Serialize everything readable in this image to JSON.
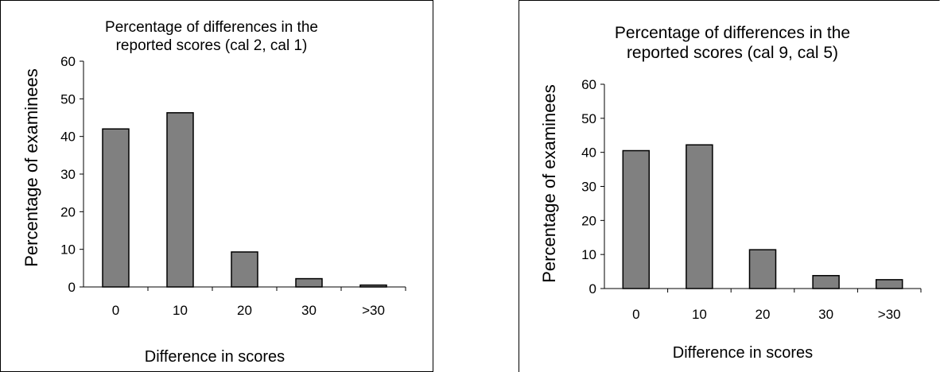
{
  "chart_data": [
    {
      "type": "bar",
      "title": [
        "Percentage of differences in the",
        "reported scores (cal 2, cal 1)"
      ],
      "xlabel": "Difference in scores",
      "ylabel": "Percentage of examinees",
      "categories": [
        "0",
        "10",
        "20",
        "30",
        ">30"
      ],
      "values": [
        42,
        46.3,
        9.3,
        2.2,
        0.5
      ],
      "ylim": [
        0,
        60
      ],
      "yticks": [
        "0",
        "10",
        "20",
        "30",
        "40",
        "50",
        "60"
      ],
      "grid": false,
      "legend": "none",
      "bar_color": "#808080"
    },
    {
      "type": "bar",
      "title": [
        "Percentage of differences in the",
        "reported scores (cal 9, cal 5)"
      ],
      "xlabel": "Difference in scores",
      "ylabel": "Percentage of examinees",
      "categories": [
        "0",
        "10",
        "20",
        "30",
        ">30"
      ],
      "values": [
        40.5,
        42.2,
        11.4,
        3.8,
        2.6
      ],
      "ylim": [
        0,
        60
      ],
      "yticks": [
        "0",
        "10",
        "20",
        "30",
        "40",
        "50",
        "60"
      ],
      "grid": false,
      "legend": "none",
      "bar_color": "#808080"
    }
  ]
}
